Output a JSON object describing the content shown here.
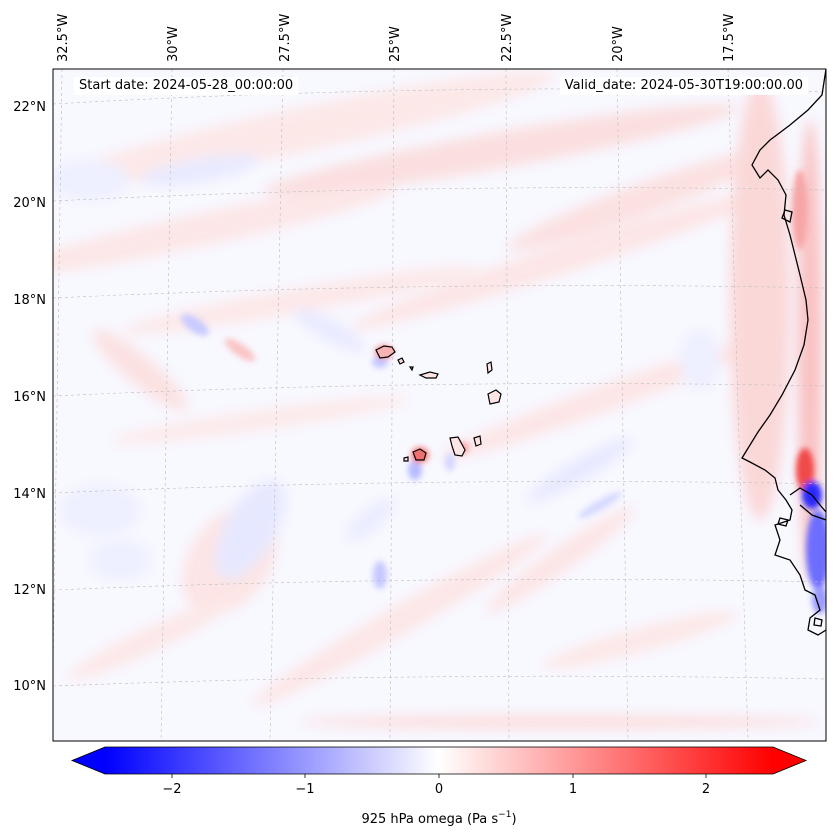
{
  "header": {
    "start_date": "Start date: 2024-05-28_00:00:00",
    "valid_date": "Valid_date: 2024-05-30T19:00:00.00"
  },
  "map": {
    "lon_labels": [
      "32.5°W",
      "30°W",
      "27.5°W",
      "25°W",
      "22.5°W",
      "20°W",
      "17.5°W"
    ],
    "lat_labels": [
      "22°N",
      "20°N",
      "18°N",
      "16°N",
      "14°N",
      "12°N",
      "10°N"
    ],
    "field": "925 hPa omega",
    "gridlines": true,
    "colormap": {
      "negative": "#0000ff",
      "zero": "#ffffff",
      "positive": "#ff0000"
    }
  },
  "colorbar": {
    "ticks": [
      "−2",
      "−1",
      "0",
      "1",
      "2"
    ],
    "label_main": "925 hPa omega (Pa s",
    "label_sup": "−1",
    "label_end": ")",
    "range": [
      -2.6,
      2.6
    ],
    "extend": "both"
  }
}
